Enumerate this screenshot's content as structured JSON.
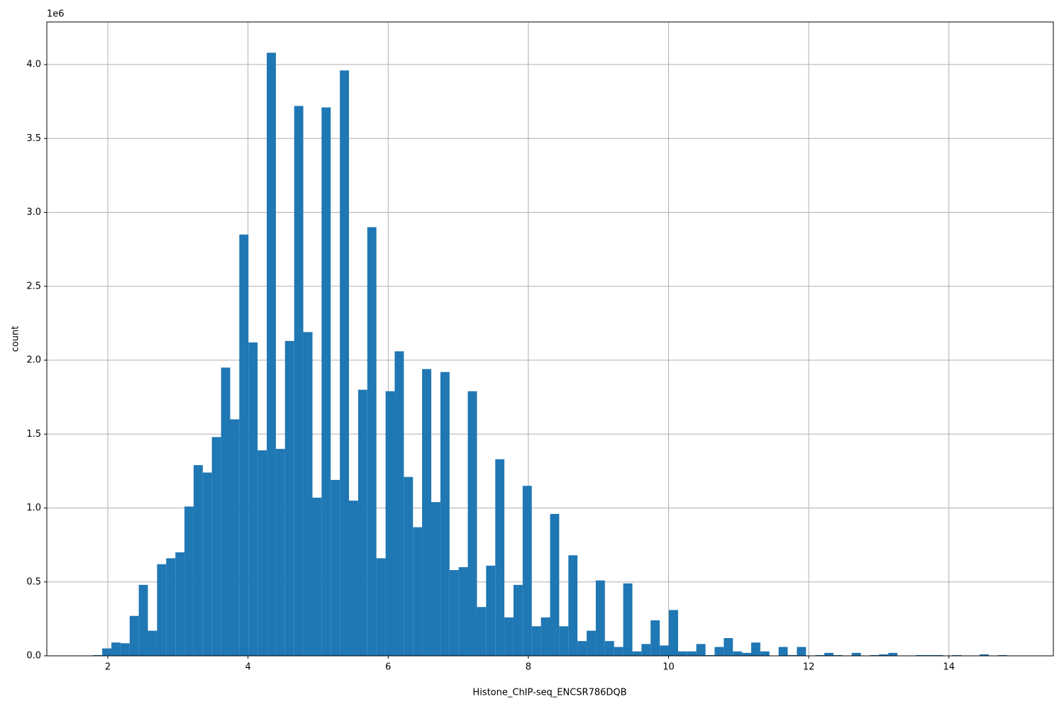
{
  "chart_data": {
    "type": "histogram",
    "xlabel": "Histone_ChIP-seq_ENCSR786DQB",
    "ylabel": "count",
    "y_offset_label": "1e6",
    "color": "#1f77b4",
    "grid": true,
    "xlim": [
      1.13,
      15.49
    ],
    "ylim": [
      0,
      4.288
    ],
    "xticks": [
      2,
      4,
      6,
      8,
      10,
      12,
      14
    ],
    "yticks": [
      {
        "value": 0,
        "label": "0.0"
      },
      {
        "value": 0.5,
        "label": "0.5"
      },
      {
        "value": 1,
        "label": "1.0"
      },
      {
        "value": 1.5,
        "label": "1.5"
      },
      {
        "value": 2,
        "label": "2.0"
      },
      {
        "value": 2.5,
        "label": "2.5"
      },
      {
        "value": 3,
        "label": "3.0"
      },
      {
        "value": 3.5,
        "label": "3.5"
      },
      {
        "value": 4,
        "label": "4.0"
      }
    ],
    "bins": [
      1.79,
      1.92,
      2.051,
      2.181,
      2.312,
      2.442,
      2.572,
      2.703,
      2.833,
      2.964,
      3.094,
      3.224,
      3.355,
      3.485,
      3.616,
      3.746,
      3.876,
      4.007,
      4.137,
      4.268,
      4.398,
      4.528,
      4.659,
      4.789,
      4.92,
      5.05,
      5.18,
      5.311,
      5.441,
      5.572,
      5.702,
      5.832,
      5.963,
      6.093,
      6.224,
      6.354,
      6.484,
      6.615,
      6.745,
      6.876,
      7.006,
      7.136,
      7.267,
      7.397,
      7.528,
      7.658,
      7.788,
      7.919,
      8.049,
      8.18,
      8.31,
      8.44,
      8.571,
      8.701,
      8.832,
      8.962,
      9.092,
      9.223,
      9.353,
      9.484,
      9.614,
      9.744,
      9.875,
      10.005,
      10.136,
      10.266,
      10.396,
      10.527,
      10.657,
      10.788,
      10.918,
      11.048,
      11.179,
      11.309,
      11.44,
      11.57,
      11.7,
      11.831,
      11.961,
      12.092,
      12.222,
      12.352,
      12.483,
      12.613,
      12.744,
      12.874,
      13.004,
      13.135,
      13.265,
      13.396,
      13.526,
      13.656,
      13.787,
      13.917,
      14.048,
      14.178,
      14.308,
      14.439,
      14.569,
      14.7,
      14.83
    ],
    "values": [
      0.005,
      0.05,
      0.09,
      0.085,
      0.27,
      0.48,
      0.17,
      0.62,
      0.66,
      0.7,
      1.01,
      1.29,
      1.24,
      1.48,
      1.95,
      1.6,
      2.85,
      2.12,
      1.39,
      4.08,
      1.4,
      2.13,
      3.72,
      2.19,
      1.07,
      3.71,
      1.19,
      3.96,
      1.05,
      1.8,
      2.9,
      0.66,
      1.79,
      2.06,
      1.21,
      0.87,
      1.94,
      1.04,
      1.92,
      0.58,
      0.6,
      1.79,
      0.33,
      0.61,
      1.33,
      0.26,
      0.48,
      1.15,
      0.2,
      0.26,
      0.96,
      0.2,
      0.68,
      0.1,
      0.17,
      0.51,
      0.1,
      0.06,
      0.49,
      0.03,
      0.08,
      0.24,
      0.07,
      0.31,
      0.03,
      0.03,
      0.08,
      0.005,
      0.06,
      0.12,
      0.03,
      0.02,
      0.09,
      0.03,
      0,
      0.06,
      0.005,
      0.06,
      0,
      0.005,
      0.02,
      0.005,
      0,
      0.02,
      0,
      0.005,
      0.01,
      0.02,
      0,
      0,
      0.005,
      0.005,
      0.005,
      0,
      0.005,
      0,
      0,
      0.01,
      0,
      0.005
    ]
  }
}
